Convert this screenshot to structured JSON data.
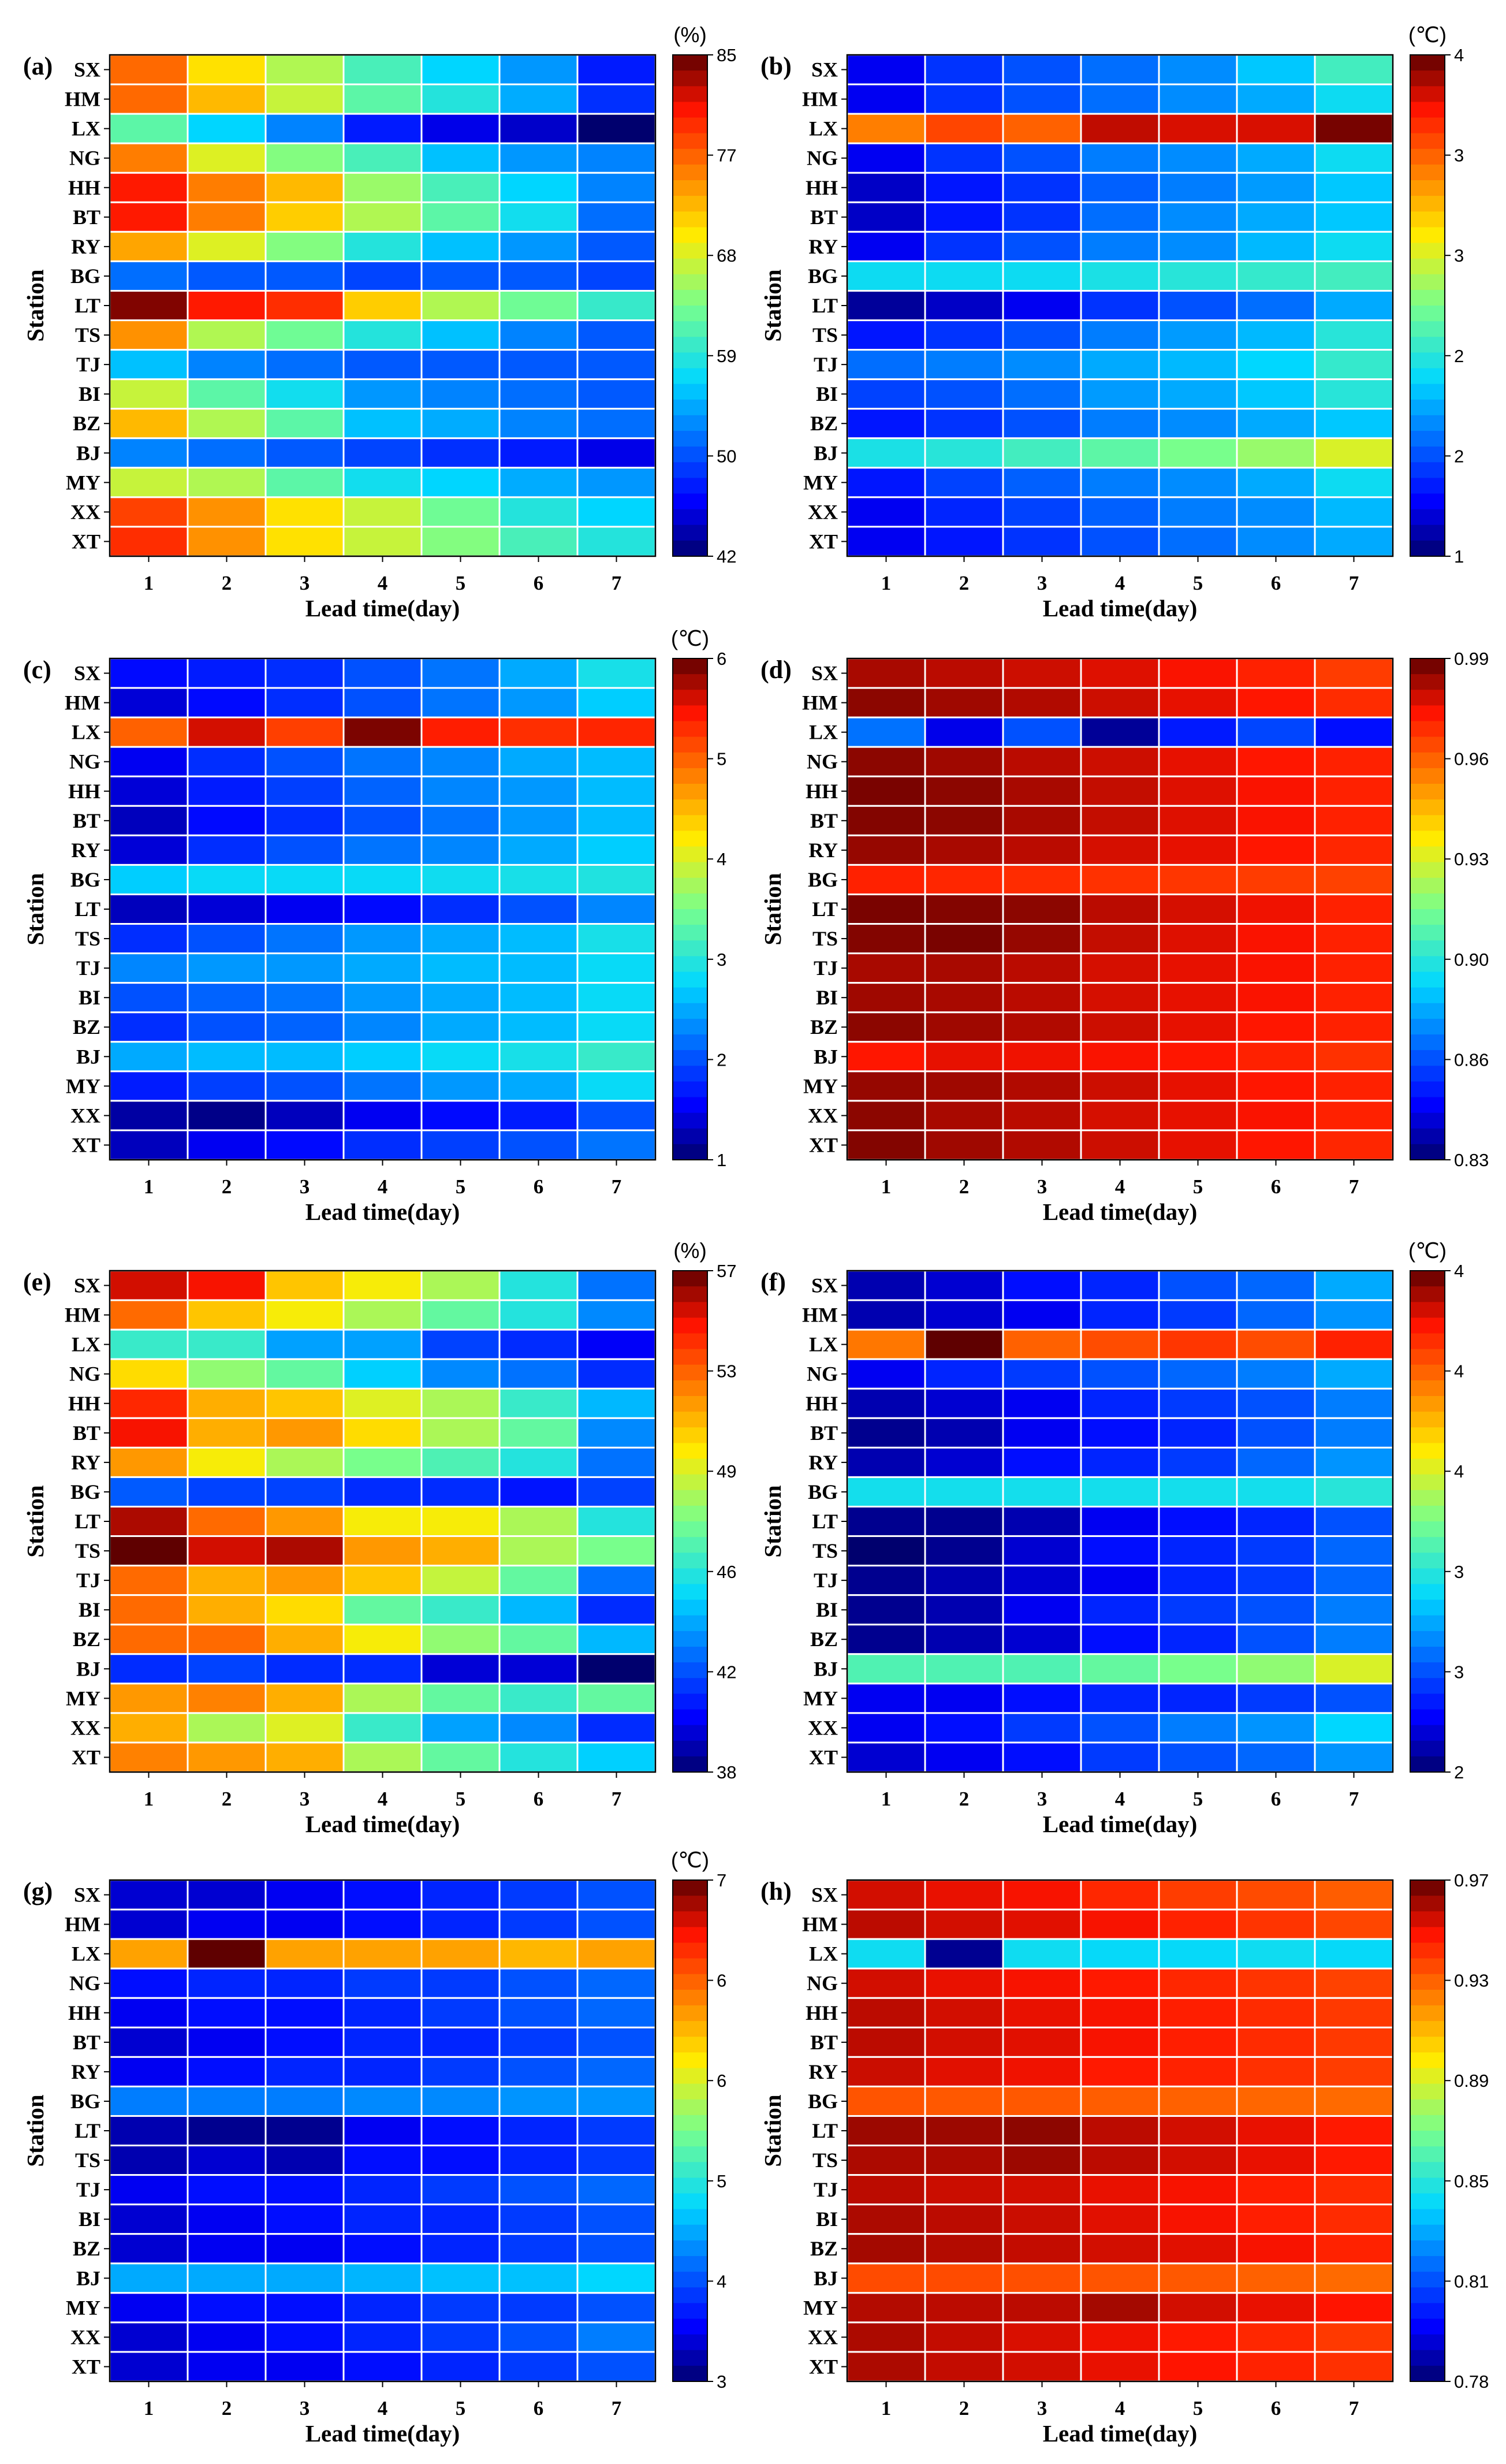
{
  "figure": {
    "stations": [
      "SX",
      "HM",
      "LX",
      "NG",
      "HH",
      "BT",
      "RY",
      "BG",
      "LT",
      "TS",
      "TJ",
      "BI",
      "BZ",
      "BJ",
      "MY",
      "XX",
      "XT"
    ],
    "lead_times": [
      "1",
      "2",
      "3",
      "4",
      "5",
      "6",
      "7"
    ],
    "ylabel": "Station",
    "xlabel": "Lead time(day)"
  },
  "chart_data": [
    {
      "panel": "(a)",
      "type": "heatmap",
      "unit": "(%)",
      "cb_ticks": [
        "85",
        "77",
        "68",
        "59",
        "50",
        "42"
      ],
      "vmin": 42,
      "vmax": 85,
      "values": [
        [
          76,
          70,
          66,
          61,
          57,
          54,
          48
        ],
        [
          76,
          72,
          67,
          62,
          59,
          55,
          49
        ],
        [
          62,
          57,
          53,
          48,
          46,
          45,
          42
        ],
        [
          75,
          68,
          64,
          61,
          56,
          54,
          53
        ],
        [
          80,
          75,
          72,
          65,
          61,
          57,
          53
        ],
        [
          80,
          75,
          71,
          66,
          62,
          58,
          52
        ],
        [
          73,
          68,
          64,
          59,
          56,
          54,
          51
        ],
        [
          52,
          51,
          51,
          50,
          51,
          51,
          50
        ],
        [
          84,
          80,
          79,
          71,
          66,
          63,
          60
        ],
        [
          74,
          66,
          63,
          59,
          56,
          53,
          51
        ],
        [
          56,
          53,
          52,
          51,
          51,
          51,
          51
        ],
        [
          67,
          62,
          58,
          54,
          53,
          52,
          51
        ],
        [
          72,
          66,
          62,
          56,
          55,
          53,
          52
        ],
        [
          53,
          52,
          51,
          50,
          49,
          48,
          46
        ],
        [
          67,
          66,
          62,
          58,
          57,
          55,
          54
        ],
        [
          78,
          74,
          70,
          67,
          63,
          59,
          57
        ],
        [
          79,
          74,
          70,
          67,
          64,
          61,
          59
        ]
      ]
    },
    {
      "panel": "(b)",
      "type": "heatmap",
      "unit": "(℃)",
      "cb_ticks": [
        "4",
        "3",
        "3",
        "2",
        "2",
        "1"
      ],
      "vmin": 1,
      "vmax": 4,
      "values": [
        [
          1.3,
          1.5,
          1.6,
          1.7,
          1.8,
          2.0,
          2.3
        ],
        [
          1.3,
          1.5,
          1.6,
          1.7,
          1.8,
          1.9,
          2.1
        ],
        [
          3.3,
          3.5,
          3.4,
          3.8,
          3.75,
          3.75,
          3.95
        ],
        [
          1.3,
          1.5,
          1.6,
          1.75,
          1.8,
          1.9,
          2.1
        ],
        [
          1.2,
          1.4,
          1.5,
          1.65,
          1.75,
          1.85,
          2.0
        ],
        [
          1.2,
          1.4,
          1.5,
          1.7,
          1.8,
          1.9,
          2.0
        ],
        [
          1.3,
          1.5,
          1.6,
          1.75,
          1.8,
          1.95,
          2.1
        ],
        [
          2.1,
          2.1,
          2.1,
          2.15,
          2.2,
          2.25,
          2.3
        ],
        [
          1.1,
          1.2,
          1.3,
          1.5,
          1.6,
          1.7,
          1.9
        ],
        [
          1.4,
          1.5,
          1.6,
          1.75,
          1.85,
          1.95,
          2.2
        ],
        [
          1.7,
          1.75,
          1.8,
          1.9,
          1.95,
          2.05,
          2.25
        ],
        [
          1.55,
          1.6,
          1.7,
          1.85,
          1.9,
          2.0,
          2.2
        ],
        [
          1.4,
          1.5,
          1.6,
          1.75,
          1.8,
          1.9,
          2.0
        ],
        [
          2.15,
          2.2,
          2.3,
          2.4,
          2.5,
          2.6,
          2.8
        ],
        [
          1.4,
          1.55,
          1.65,
          1.75,
          1.8,
          1.9,
          2.1
        ],
        [
          1.3,
          1.45,
          1.55,
          1.65,
          1.75,
          1.8,
          1.95
        ],
        [
          1.3,
          1.4,
          1.5,
          1.6,
          1.7,
          1.8,
          1.9
        ]
      ]
    },
    {
      "panel": "(c)",
      "type": "heatmap",
      "unit": "(℃)",
      "cb_ticks": [
        "6",
        "5",
        "4",
        "3",
        "2",
        "1"
      ],
      "vmin": 1,
      "vmax": 6,
      "values": [
        [
          1.6,
          1.7,
          1.8,
          2.0,
          2.2,
          2.5,
          2.9
        ],
        [
          1.4,
          1.6,
          1.8,
          2.0,
          2.2,
          2.4,
          2.7
        ],
        [
          5.0,
          5.6,
          5.2,
          5.9,
          5.4,
          5.3,
          5.35
        ],
        [
          1.5,
          1.8,
          2.0,
          2.2,
          2.3,
          2.5,
          2.6
        ],
        [
          1.4,
          1.7,
          1.9,
          2.1,
          2.3,
          2.4,
          2.6
        ],
        [
          1.3,
          1.6,
          1.8,
          2.0,
          2.2,
          2.4,
          2.6
        ],
        [
          1.4,
          1.8,
          2.0,
          2.2,
          2.3,
          2.5,
          2.7
        ],
        [
          2.7,
          2.8,
          2.8,
          2.8,
          2.85,
          2.9,
          2.95
        ],
        [
          1.3,
          1.4,
          1.5,
          1.6,
          1.8,
          2.0,
          2.3
        ],
        [
          1.8,
          2.0,
          2.2,
          2.4,
          2.5,
          2.6,
          2.9
        ],
        [
          2.3,
          2.4,
          2.4,
          2.5,
          2.6,
          2.6,
          2.8
        ],
        [
          2.0,
          2.1,
          2.2,
          2.4,
          2.5,
          2.6,
          2.8
        ],
        [
          1.8,
          2.0,
          2.1,
          2.3,
          2.5,
          2.6,
          2.8
        ],
        [
          2.5,
          2.6,
          2.6,
          2.7,
          2.8,
          2.9,
          3.1
        ],
        [
          1.7,
          1.9,
          2.0,
          2.2,
          2.4,
          2.5,
          2.8
        ],
        [
          1.2,
          1.1,
          1.3,
          1.5,
          1.6,
          1.7,
          2.0
        ],
        [
          1.3,
          1.5,
          1.6,
          1.8,
          1.9,
          2.0,
          2.2
        ]
      ]
    },
    {
      "panel": "(d)",
      "type": "heatmap",
      "unit": "",
      "cb_ticks": [
        "0.99",
        "0.96",
        "0.93",
        "0.90",
        "0.86",
        "0.83"
      ],
      "vmin": 0.83,
      "vmax": 0.99,
      "values": [
        [
          0.982,
          0.98,
          0.978,
          0.976,
          0.973,
          0.97,
          0.965
        ],
        [
          0.985,
          0.983,
          0.981,
          0.978,
          0.975,
          0.972,
          0.968
        ],
        [
          0.868,
          0.845,
          0.862,
          0.835,
          0.852,
          0.86,
          0.85
        ],
        [
          0.985,
          0.983,
          0.98,
          0.978,
          0.975,
          0.972,
          0.97
        ],
        [
          0.987,
          0.985,
          0.982,
          0.979,
          0.976,
          0.973,
          0.97
        ],
        [
          0.986,
          0.985,
          0.982,
          0.979,
          0.976,
          0.973,
          0.97
        ],
        [
          0.984,
          0.982,
          0.98,
          0.977,
          0.975,
          0.972,
          0.969
        ],
        [
          0.97,
          0.969,
          0.968,
          0.967,
          0.966,
          0.965,
          0.964
        ],
        [
          0.987,
          0.986,
          0.985,
          0.98,
          0.977,
          0.974,
          0.97
        ],
        [
          0.986,
          0.987,
          0.984,
          0.979,
          0.976,
          0.973,
          0.97
        ],
        [
          0.982,
          0.982,
          0.98,
          0.977,
          0.975,
          0.973,
          0.97
        ],
        [
          0.983,
          0.982,
          0.98,
          0.977,
          0.975,
          0.973,
          0.97
        ],
        [
          0.985,
          0.983,
          0.981,
          0.978,
          0.975,
          0.972,
          0.97
        ],
        [
          0.972,
          0.975,
          0.974,
          0.973,
          0.972,
          0.97,
          0.967
        ],
        [
          0.984,
          0.983,
          0.981,
          0.978,
          0.975,
          0.972,
          0.97
        ],
        [
          0.985,
          0.982,
          0.98,
          0.977,
          0.975,
          0.973,
          0.97
        ],
        [
          0.986,
          0.983,
          0.981,
          0.978,
          0.975,
          0.972,
          0.969
        ]
      ]
    },
    {
      "panel": "(e)",
      "type": "heatmap",
      "unit": "(%)",
      "cb_ticks": [
        "57",
        "53",
        "49",
        "46",
        "42",
        "38"
      ],
      "vmin": 38,
      "vmax": 57,
      "values": [
        [
          55.5,
          55,
          51,
          50,
          48.5,
          45.5,
          42.5
        ],
        [
          53,
          51,
          50,
          48.5,
          47,
          45.5,
          43
        ],
        [
          46,
          46,
          43.5,
          43.5,
          41.5,
          41,
          40
        ],
        [
          50.5,
          48,
          47,
          44.5,
          43,
          42.5,
          41
        ],
        [
          54.5,
          51.5,
          51,
          49.5,
          48.5,
          46,
          44
        ],
        [
          55,
          51.5,
          52,
          50.5,
          48.5,
          47,
          43
        ],
        [
          52,
          50,
          48.5,
          47.5,
          46.5,
          45.5,
          42.5
        ],
        [
          42,
          41.5,
          41.5,
          41,
          41,
          40.5,
          41.5
        ],
        [
          56,
          53,
          52,
          50,
          50,
          48.5,
          45.5
        ],
        [
          57,
          55.5,
          56,
          52,
          51.5,
          48.5,
          47.5
        ],
        [
          53,
          51.5,
          52,
          51,
          49,
          47,
          42.5
        ],
        [
          53,
          51.5,
          50.5,
          47,
          46,
          44,
          41
        ],
        [
          53,
          53,
          51.5,
          50,
          48,
          47,
          44
        ],
        [
          41,
          41.5,
          41,
          41,
          39.5,
          39.5,
          38
        ],
        [
          52,
          52.5,
          51.5,
          48.5,
          47,
          46,
          47
        ],
        [
          51.5,
          48.5,
          49.5,
          46,
          43.5,
          43,
          41
        ],
        [
          52.5,
          52,
          51.5,
          48.5,
          47,
          45.5,
          44.5
        ]
      ]
    },
    {
      "panel": "(f)",
      "type": "heatmap",
      "unit": "(℃)",
      "cb_ticks": [
        "4",
        "4",
        "4",
        "3",
        "3",
        "2"
      ],
      "vmin": 2,
      "vmax": 4,
      "values": [
        [
          2.1,
          2.15,
          2.25,
          2.3,
          2.4,
          2.45,
          2.6
        ],
        [
          2.1,
          2.15,
          2.2,
          2.3,
          2.35,
          2.45,
          2.55
        ],
        [
          3.55,
          4.0,
          3.6,
          3.65,
          3.7,
          3.65,
          3.75
        ],
        [
          2.2,
          2.3,
          2.35,
          2.4,
          2.45,
          2.5,
          2.6
        ],
        [
          2.1,
          2.15,
          2.2,
          2.3,
          2.35,
          2.4,
          2.5
        ],
        [
          2.05,
          2.1,
          2.2,
          2.25,
          2.3,
          2.4,
          2.5
        ],
        [
          2.1,
          2.15,
          2.25,
          2.3,
          2.35,
          2.45,
          2.55
        ],
        [
          2.75,
          2.75,
          2.75,
          2.75,
          2.75,
          2.75,
          2.8
        ],
        [
          2.05,
          2.05,
          2.1,
          2.2,
          2.25,
          2.3,
          2.4
        ],
        [
          2.0,
          2.05,
          2.15,
          2.25,
          2.3,
          2.35,
          2.45
        ],
        [
          2.05,
          2.1,
          2.15,
          2.2,
          2.3,
          2.35,
          2.45
        ],
        [
          2.05,
          2.1,
          2.2,
          2.3,
          2.35,
          2.4,
          2.5
        ],
        [
          2.05,
          2.1,
          2.15,
          2.25,
          2.3,
          2.4,
          2.5
        ],
        [
          2.9,
          2.9,
          2.9,
          2.95,
          3.0,
          3.05,
          3.2
        ],
        [
          2.2,
          2.2,
          2.25,
          2.3,
          2.3,
          2.35,
          2.4
        ],
        [
          2.2,
          2.25,
          2.35,
          2.4,
          2.5,
          2.55,
          2.7
        ],
        [
          2.15,
          2.2,
          2.25,
          2.35,
          2.4,
          2.45,
          2.55
        ]
      ]
    },
    {
      "panel": "(g)",
      "type": "heatmap",
      "unit": "(℃)",
      "cb_ticks": [
        "7",
        "6",
        "6",
        "5",
        "4",
        "3"
      ],
      "vmin": 3,
      "vmax": 7,
      "values": [
        [
          3.3,
          3.3,
          3.4,
          3.5,
          3.6,
          3.7,
          3.8
        ],
        [
          3.3,
          3.4,
          3.4,
          3.5,
          3.6,
          3.7,
          3.8
        ],
        [
          5.9,
          7.0,
          5.9,
          5.9,
          5.9,
          5.8,
          5.9
        ],
        [
          3.5,
          3.6,
          3.6,
          3.7,
          3.7,
          3.8,
          3.9
        ],
        [
          3.4,
          3.5,
          3.5,
          3.6,
          3.7,
          3.8,
          3.9
        ],
        [
          3.3,
          3.4,
          3.5,
          3.6,
          3.6,
          3.7,
          3.8
        ],
        [
          3.4,
          3.5,
          3.6,
          3.6,
          3.7,
          3.8,
          3.9
        ],
        [
          4.0,
          4.0,
          4.0,
          4.05,
          4.05,
          4.1,
          4.1
        ],
        [
          3.2,
          3.1,
          3.1,
          3.4,
          3.5,
          3.6,
          3.7
        ],
        [
          3.2,
          3.3,
          3.2,
          3.5,
          3.5,
          3.6,
          3.7
        ],
        [
          3.4,
          3.5,
          3.5,
          3.6,
          3.7,
          3.8,
          3.9
        ],
        [
          3.3,
          3.4,
          3.5,
          3.6,
          3.6,
          3.7,
          3.8
        ],
        [
          3.3,
          3.4,
          3.4,
          3.5,
          3.6,
          3.7,
          3.8
        ],
        [
          4.2,
          4.2,
          4.2,
          4.25,
          4.3,
          4.3,
          4.4
        ],
        [
          3.4,
          3.5,
          3.5,
          3.6,
          3.7,
          3.7,
          3.8
        ],
        [
          3.3,
          3.4,
          3.5,
          3.6,
          3.7,
          3.8,
          4.0
        ],
        [
          3.3,
          3.4,
          3.4,
          3.5,
          3.6,
          3.7,
          3.8
        ]
      ]
    },
    {
      "panel": "(h)",
      "type": "heatmap",
      "unit": "",
      "cb_ticks": [
        "0.97",
        "0.93",
        "0.89",
        "0.85",
        "0.81",
        "0.78"
      ],
      "vmin": 0.78,
      "vmax": 0.97,
      "values": [
        [
          0.955,
          0.952,
          0.95,
          0.945,
          0.94,
          0.937,
          0.933
        ],
        [
          0.958,
          0.955,
          0.953,
          0.95,
          0.946,
          0.942,
          0.938
        ],
        [
          0.85,
          0.785,
          0.85,
          0.848,
          0.848,
          0.85,
          0.848
        ],
        [
          0.955,
          0.952,
          0.95,
          0.948,
          0.945,
          0.942,
          0.939
        ],
        [
          0.958,
          0.955,
          0.952,
          0.95,
          0.947,
          0.944,
          0.941
        ],
        [
          0.958,
          0.955,
          0.953,
          0.95,
          0.947,
          0.944,
          0.941
        ],
        [
          0.956,
          0.953,
          0.951,
          0.948,
          0.946,
          0.943,
          0.94
        ],
        [
          0.935,
          0.934,
          0.934,
          0.933,
          0.932,
          0.931,
          0.93
        ],
        [
          0.962,
          0.962,
          0.964,
          0.958,
          0.955,
          0.952,
          0.948
        ],
        [
          0.96,
          0.96,
          0.962,
          0.958,
          0.955,
          0.952,
          0.948
        ],
        [
          0.958,
          0.956,
          0.955,
          0.952,
          0.95,
          0.947,
          0.944
        ],
        [
          0.96,
          0.958,
          0.956,
          0.953,
          0.95,
          0.947,
          0.944
        ],
        [
          0.961,
          0.959,
          0.957,
          0.955,
          0.953,
          0.95,
          0.946
        ],
        [
          0.937,
          0.937,
          0.936,
          0.935,
          0.934,
          0.932,
          0.93
        ],
        [
          0.959,
          0.958,
          0.958,
          0.961,
          0.955,
          0.952,
          0.949
        ],
        [
          0.96,
          0.957,
          0.954,
          0.951,
          0.948,
          0.945,
          0.941
        ],
        [
          0.96,
          0.957,
          0.955,
          0.952,
          0.949,
          0.946,
          0.943
        ]
      ]
    }
  ]
}
